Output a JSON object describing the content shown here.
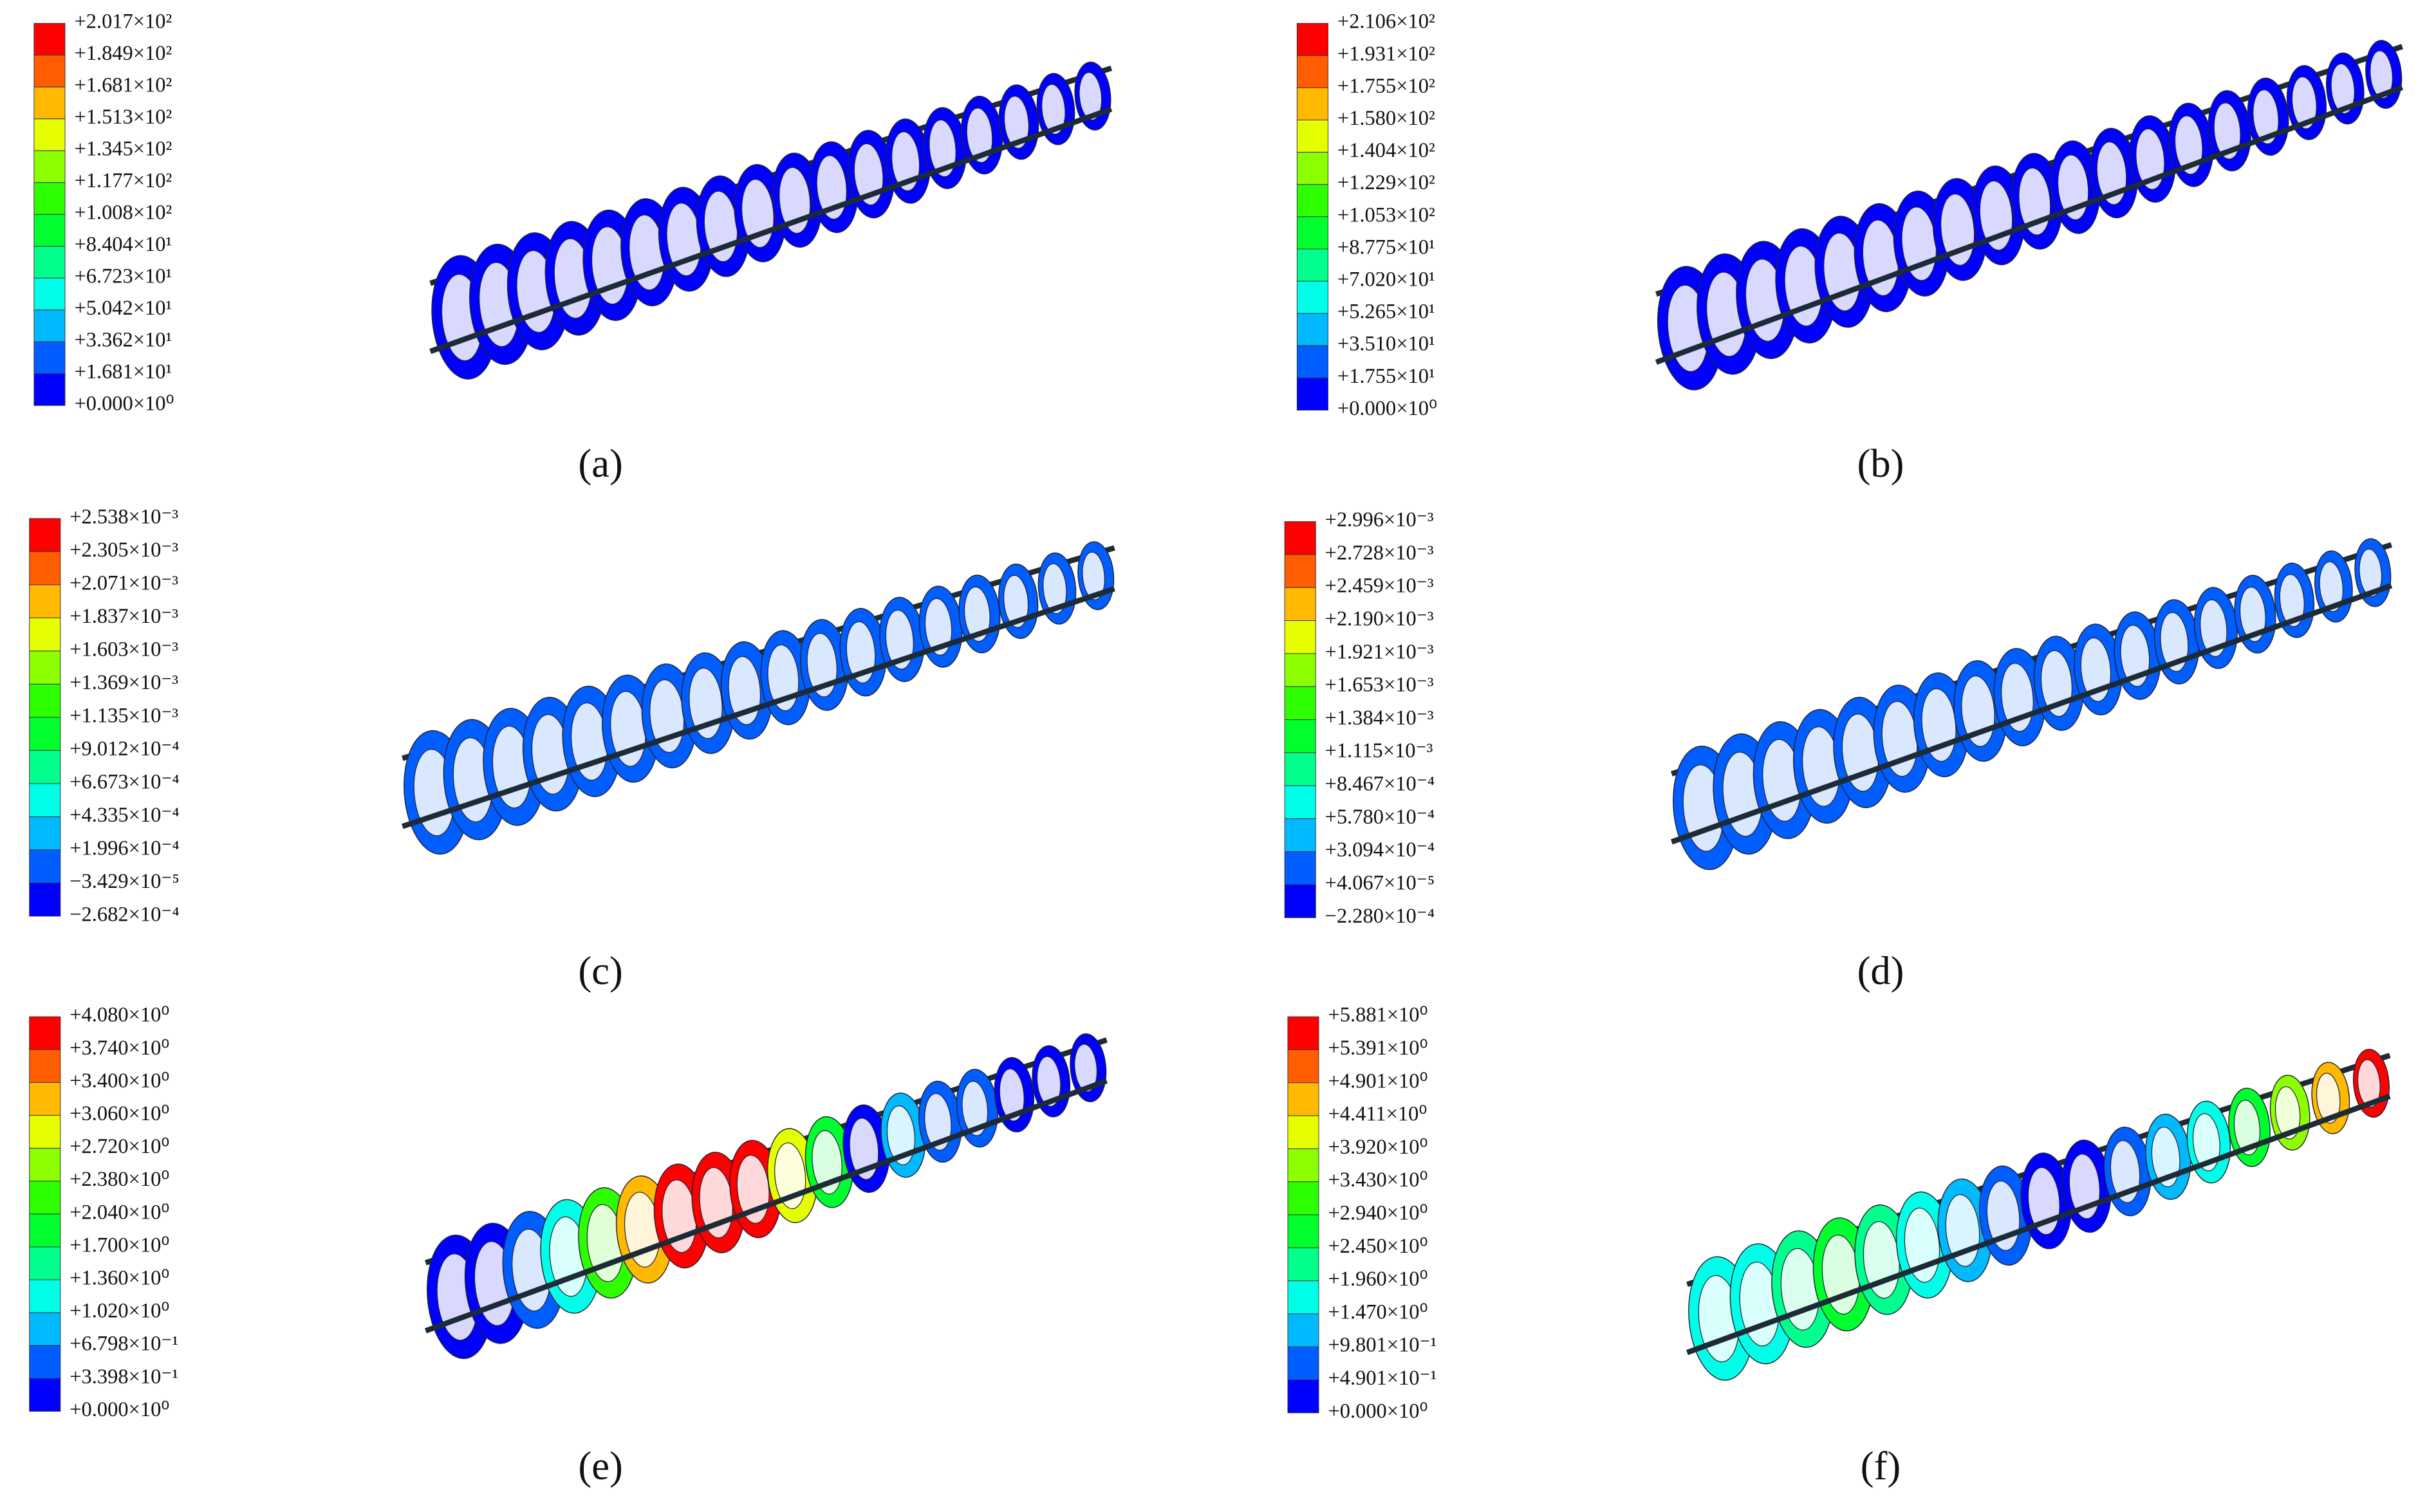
{
  "panels": [
    {
      "caption": "(a)",
      "legend": {
        "labels": [
          "+2.017×10²",
          "+1.849×10²",
          "+1.681×10²",
          "+1.513×10²",
          "+1.345×10²",
          "+1.177×10²",
          "+1.008×10²",
          "+8.404×10¹",
          "+6.723×10¹",
          "+5.042×10¹",
          "+3.362×10¹",
          "+1.681×10¹",
          "+0.000×10⁰"
        ],
        "colors": [
          "#ff0000",
          "#ff5d00",
          "#ffb900",
          "#e6ff00",
          "#8cff00",
          "#2eff00",
          "#00ff2e",
          "#00ff8c",
          "#00ffe8",
          "#00b9ff",
          "#005dff",
          "#0000ff"
        ]
      }
    },
    {
      "caption": "(b)",
      "legend": {
        "labels": [
          "+2.106×10²",
          "+1.931×10²",
          "+1.755×10²",
          "+1.580×10²",
          "+1.404×10²",
          "+1.229×10²",
          "+1.053×10²",
          "+8.775×10¹",
          "+7.020×10¹",
          "+5.265×10¹",
          "+3.510×10¹",
          "+1.755×10¹",
          "+0.000×10⁰"
        ],
        "colors": [
          "#ff0000",
          "#ff5d00",
          "#ffb900",
          "#e6ff00",
          "#8cff00",
          "#2eff00",
          "#00ff2e",
          "#00ff8c",
          "#00ffe8",
          "#00b9ff",
          "#005dff",
          "#0000ff"
        ]
      }
    },
    {
      "caption": "(c)",
      "legend": {
        "labels": [
          "+2.538×10⁻³",
          "+2.305×10⁻³",
          "+2.071×10⁻³",
          "+1.837×10⁻³",
          "+1.603×10⁻³",
          "+1.369×10⁻³",
          "+1.135×10⁻³",
          "+9.012×10⁻⁴",
          "+6.673×10⁻⁴",
          "+4.335×10⁻⁴",
          "+1.996×10⁻⁴",
          "−3.429×10⁻⁵",
          "−2.682×10⁻⁴"
        ],
        "colors": [
          "#ff0000",
          "#ff5d00",
          "#ffb900",
          "#e6ff00",
          "#8cff00",
          "#2eff00",
          "#00ff2e",
          "#00ff8c",
          "#00ffe8",
          "#00b9ff",
          "#005dff",
          "#0000ff"
        ]
      }
    },
    {
      "caption": "(d)",
      "legend": {
        "labels": [
          "+2.996×10⁻³",
          "+2.728×10⁻³",
          "+2.459×10⁻³",
          "+2.190×10⁻³",
          "+1.921×10⁻³",
          "+1.653×10⁻³",
          "+1.384×10⁻³",
          "+1.115×10⁻³",
          "+8.467×10⁻⁴",
          "+5.780×10⁻⁴",
          "+3.094×10⁻⁴",
          "+4.067×10⁻⁵",
          "−2.280×10⁻⁴"
        ],
        "colors": [
          "#ff0000",
          "#ff5d00",
          "#ffb900",
          "#e6ff00",
          "#8cff00",
          "#2eff00",
          "#00ff2e",
          "#00ff8c",
          "#00ffe8",
          "#00b9ff",
          "#005dff",
          "#0000ff"
        ]
      }
    },
    {
      "caption": "(e)",
      "legend": {
        "labels": [
          "+4.080×10⁰",
          "+3.740×10⁰",
          "+3.400×10⁰",
          "+3.060×10⁰",
          "+2.720×10⁰",
          "+2.380×10⁰",
          "+2.040×10⁰",
          "+1.700×10⁰",
          "+1.360×10⁰",
          "+1.020×10⁰",
          "+6.798×10⁻¹",
          "+3.398×10⁻¹",
          "+0.000×10⁰"
        ],
        "colors": [
          "#ff0000",
          "#ff5d00",
          "#ffb900",
          "#e6ff00",
          "#8cff00",
          "#2eff00",
          "#00ff2e",
          "#00ff8c",
          "#00ffe8",
          "#00b9ff",
          "#005dff",
          "#0000ff"
        ]
      }
    },
    {
      "caption": "(f)",
      "legend": {
        "labels": [
          "+5.881×10⁰",
          "+5.391×10⁰",
          "+4.901×10⁰",
          "+4.411×10⁰",
          "+3.920×10⁰",
          "+3.430×10⁰",
          "+2.940×10⁰",
          "+2.450×10⁰",
          "+1.960×10⁰",
          "+1.470×10⁰",
          "+9.801×10⁻¹",
          "+4.901×10⁻¹",
          "+0.000×10⁰"
        ],
        "colors": [
          "#ff0000",
          "#ff5d00",
          "#ffb900",
          "#e6ff00",
          "#8cff00",
          "#2eff00",
          "#00ff2e",
          "#00ff8c",
          "#00ffe8",
          "#00b9ff",
          "#005dff",
          "#0000ff"
        ]
      }
    }
  ]
}
